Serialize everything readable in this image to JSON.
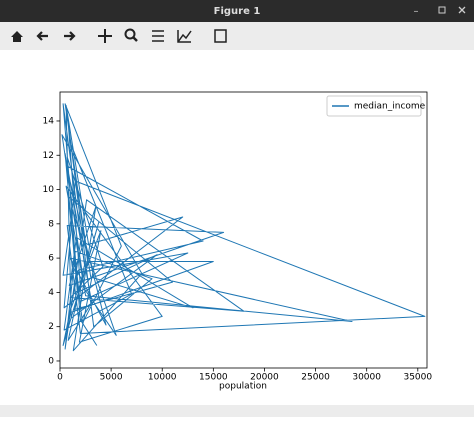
{
  "window": {
    "title": "Figure 1"
  },
  "chart_data": {
    "type": "line",
    "xlabel": "population",
    "x": [
      1200,
      300,
      2400,
      800,
      3100,
      500,
      1700,
      9500,
      1100,
      600,
      2800,
      12000,
      400,
      1500,
      35682,
      2000,
      700,
      16000,
      900,
      3500,
      1300,
      8000,
      200,
      2500,
      28566,
      1000,
      4500,
      600,
      14000,
      1800,
      300,
      3800,
      1400,
      11000,
      800,
      2200,
      6000,
      500,
      3000,
      13000,
      1600,
      400,
      7000,
      1100,
      2700,
      15000,
      900,
      4000,
      1900,
      10000,
      600,
      2400,
      5500,
      1200,
      300,
      12500,
      2100,
      800,
      3300,
      9000,
      1500,
      500,
      2600,
      18000,
      1000,
      4200,
      700,
      2000,
      3600
    ],
    "series": [
      {
        "name": "median_income",
        "color": "#1f77b4",
        "values": [
          8.3,
          15,
          5.6,
          1.2,
          3.4,
          12.1,
          4.0,
          6.2,
          2.5,
          14.9,
          6.8,
          8.4,
          3.1,
          10.5,
          2.6,
          1.6,
          7.9,
          7.5,
          4.4,
          9.0,
          0.6,
          5.1,
          13.2,
          3.8,
          2.3,
          6.0,
          2.1,
          11.4,
          7.0,
          5.3,
          0.9,
          8.1,
          3.0,
          4.6,
          9.6,
          2.2,
          6.7,
          15,
          4.9,
          3.1,
          7.2,
          1.8,
          3.9,
          12.6,
          5.8,
          5.8,
          2.8,
          7.6,
          1.1,
          2.6,
          10.2,
          4.2,
          1.5,
          8.8,
          5.0,
          6.3,
          3.5,
          13.9,
          2.0,
          4.8,
          6.4,
          0.7,
          9.4,
          2.9,
          3.7,
          5.5,
          11.9,
          2.4,
          0.9
        ]
      }
    ],
    "xlim": [
      0,
      35900
    ],
    "ylim": [
      -0.41,
      15.69
    ],
    "xticks": [
      0,
      5000,
      10000,
      15000,
      20000,
      25000,
      30000,
      35000
    ],
    "yticks": [
      0,
      2,
      4,
      6,
      8,
      10,
      12,
      14
    ],
    "legend": "upper right"
  }
}
